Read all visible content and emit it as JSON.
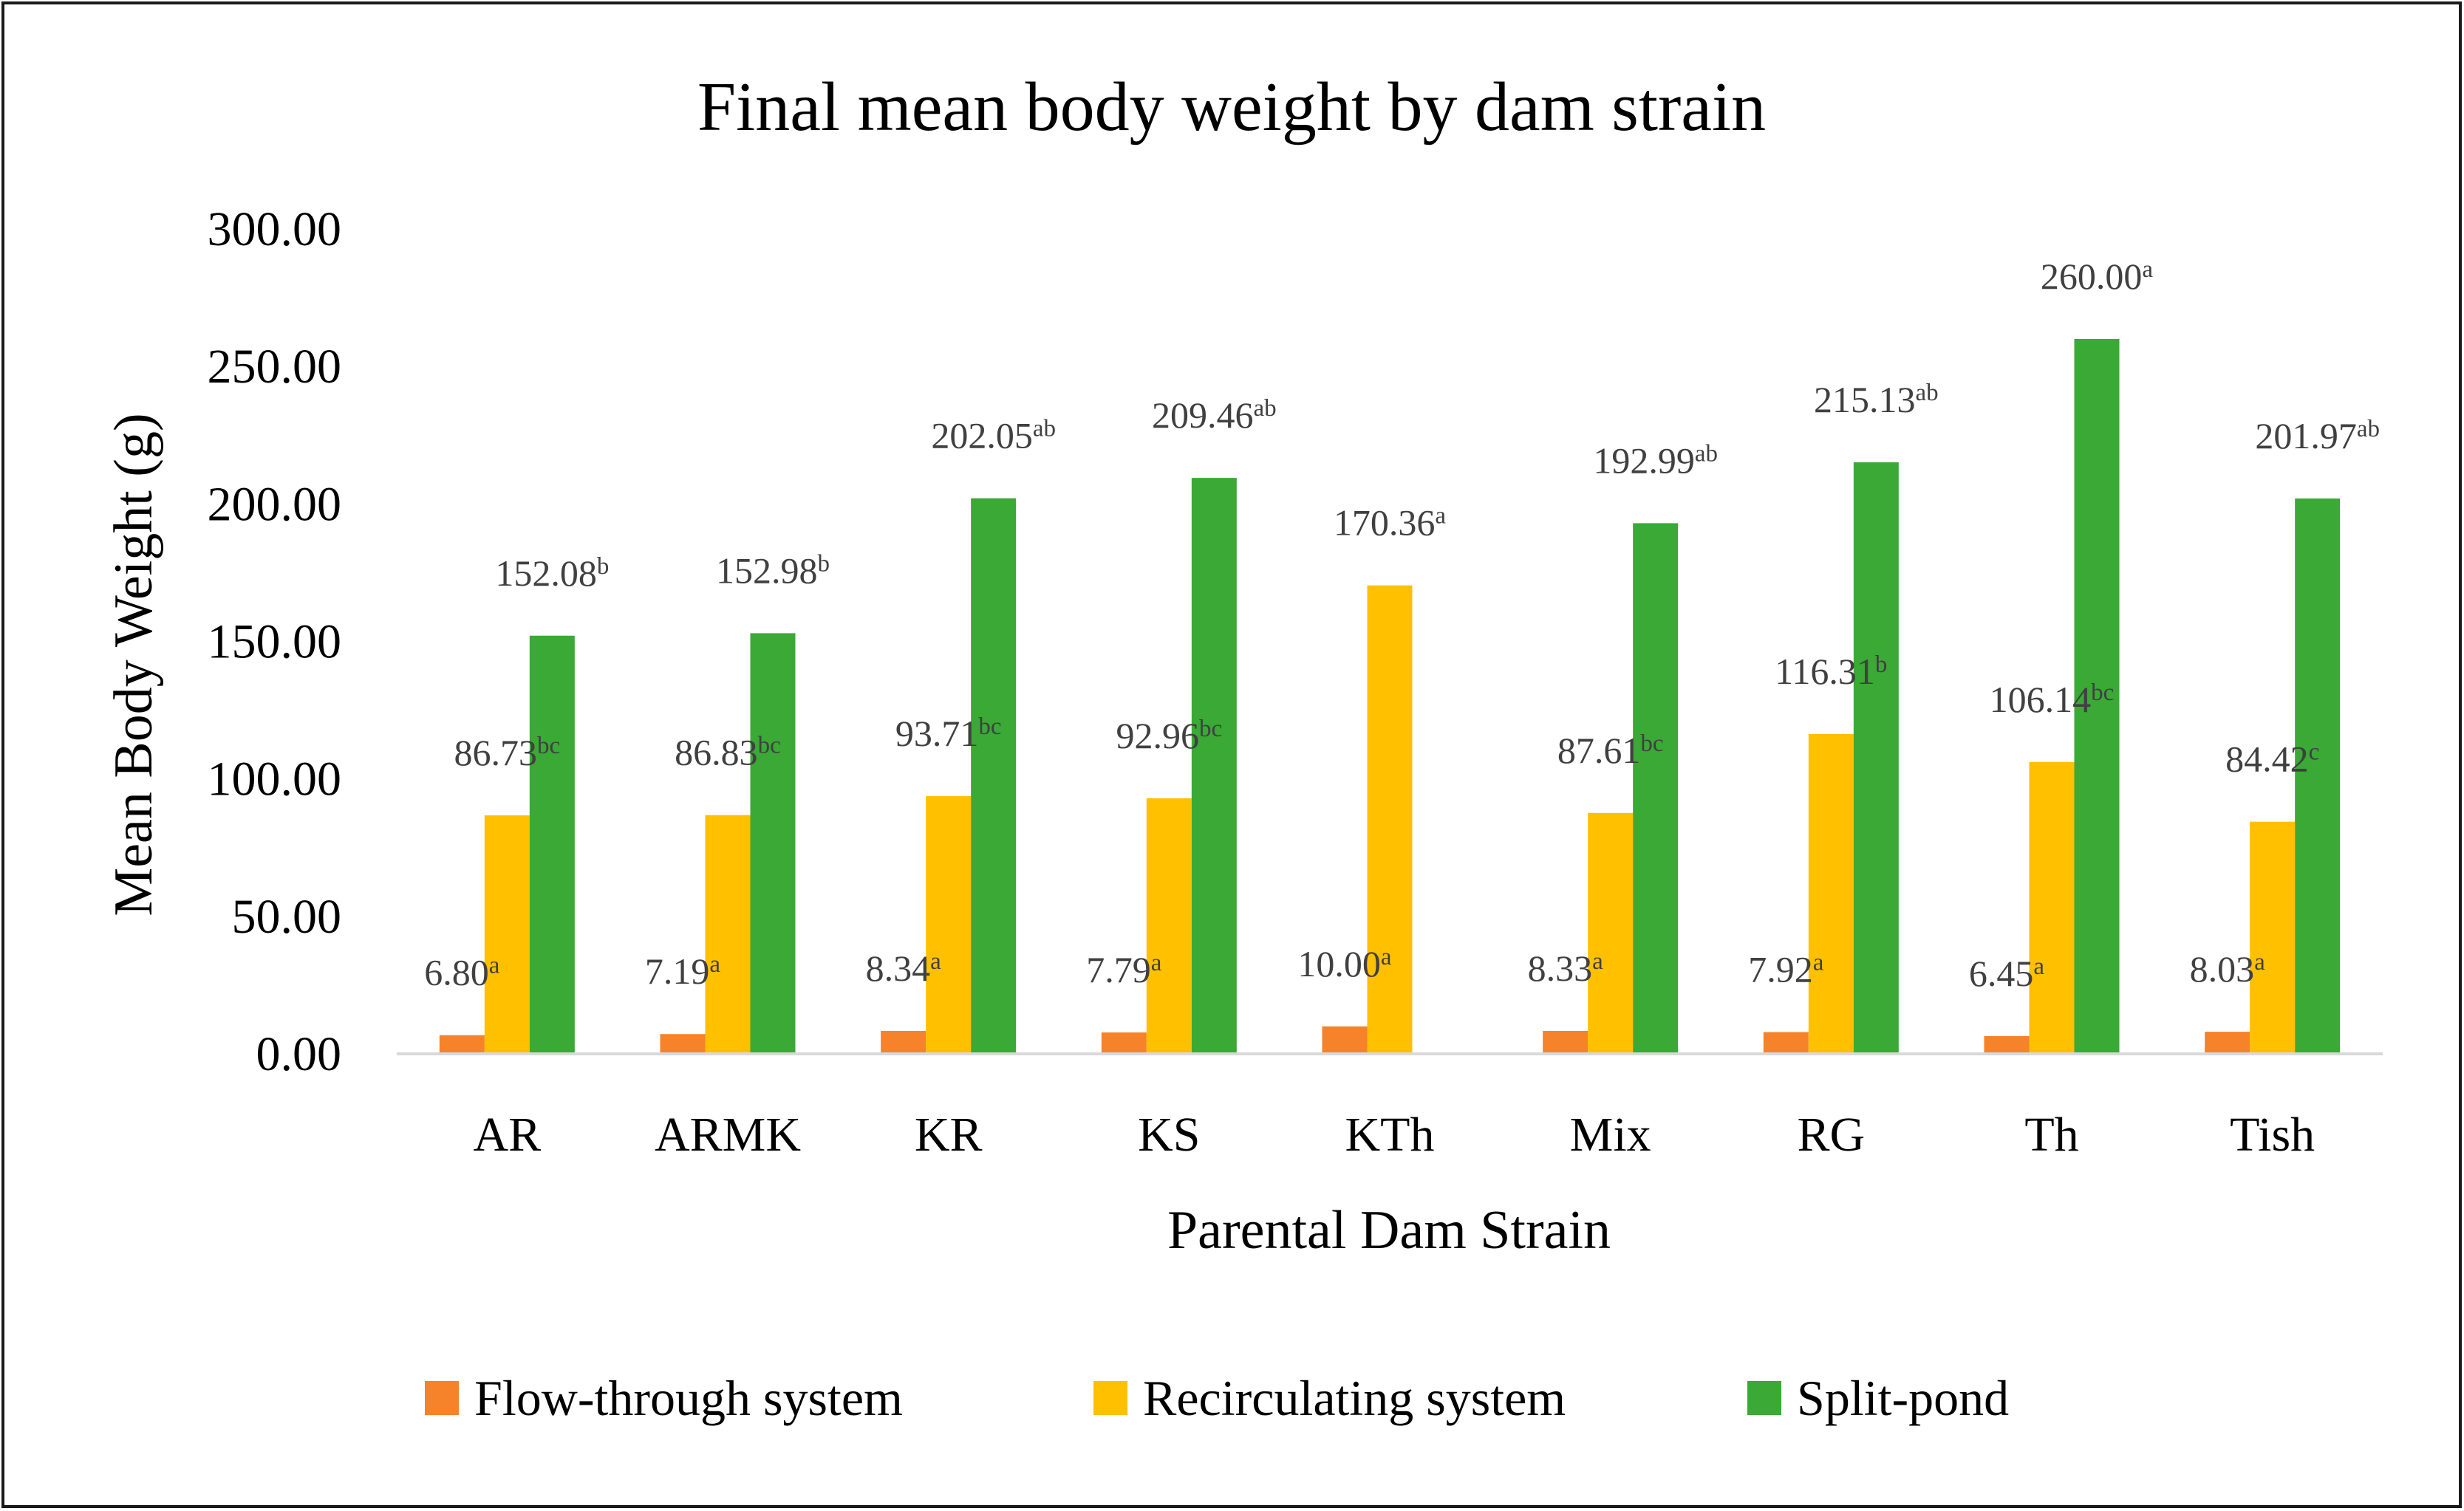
{
  "chart_data": {
    "type": "bar",
    "title": "Final mean body weight by dam strain",
    "xlabel": "Parental Dam Strain",
    "ylabel": "Mean Body Weight (g)",
    "ylim": [
      0,
      300
    ],
    "yticks": [
      "0.00",
      "50.00",
      "100.00",
      "150.00",
      "200.00",
      "250.00",
      "300.00"
    ],
    "grid": false,
    "legend_position": "bottom",
    "categories": [
      "AR",
      "ARMK",
      "KR",
      "KS",
      "KTh",
      "Mix",
      "RG",
      "Th",
      "Tish"
    ],
    "series": [
      {
        "name": "Flow-through system",
        "color": "#f6822a",
        "values": [
          6.8,
          7.19,
          8.34,
          7.79,
          10.0,
          8.33,
          7.92,
          6.45,
          8.03
        ],
        "labels": [
          "6.80",
          "7.19",
          "8.34",
          "7.79",
          "10.00",
          "8.33",
          "7.92",
          "6.45",
          "8.03"
        ],
        "letters": [
          "a",
          "a",
          "a",
          "a",
          "a",
          "a",
          "a",
          "a",
          "a"
        ]
      },
      {
        "name": "Recirculating system",
        "color": "#ffc000",
        "values": [
          86.73,
          86.83,
          93.71,
          92.96,
          170.36,
          87.61,
          116.31,
          106.14,
          84.42
        ],
        "labels": [
          "86.73",
          "86.83",
          "93.71",
          "92.96",
          "170.36",
          "87.61",
          "116.31",
          "106.14",
          "84.42"
        ],
        "letters": [
          "bc",
          "bc",
          "bc",
          "bc",
          "a",
          "bc",
          "b",
          "bc",
          "c"
        ]
      },
      {
        "name": "Split-pond",
        "color": "#3aa935",
        "values": [
          152.08,
          152.98,
          202.05,
          209.46,
          null,
          192.99,
          215.13,
          260.0,
          201.97
        ],
        "labels": [
          "152.08",
          "152.98",
          "202.05",
          "209.46",
          null,
          "192.99",
          "215.13",
          "260.00",
          "201.97"
        ],
        "letters": [
          "b",
          "b",
          "ab",
          "ab",
          null,
          "ab",
          "ab",
          "a",
          "ab"
        ]
      }
    ]
  }
}
